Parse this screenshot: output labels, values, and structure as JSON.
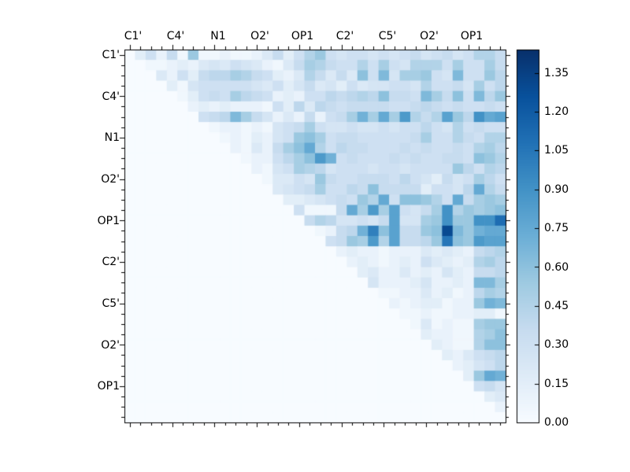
{
  "chart_data": {
    "type": "heatmap",
    "title": "",
    "matrix_size": 36,
    "cells_per_group": 4,
    "triangle": "upper",
    "colormap": "Blues",
    "vmin": 0.0,
    "vmax": 1.44,
    "grid": false,
    "x_tick_labels": [
      "C1'",
      "C4'",
      "N1",
      "O2'",
      "OP1",
      "C2'",
      "C5'",
      "O2'",
      "OP1"
    ],
    "y_tick_labels": [
      "C1'",
      "C4'",
      "N1",
      "O2'",
      "OP1",
      "C2'",
      "C5'",
      "O2'",
      "OP1"
    ],
    "colorbar_tick_labels": [
      "0.00",
      "0.15",
      "0.30",
      "0.45",
      "0.60",
      "0.75",
      "0.90",
      "1.05",
      "1.20",
      "1.35"
    ],
    "colorbar_tick_values": [
      0.0,
      0.15,
      0.3,
      0.45,
      0.6,
      0.75,
      0.9,
      1.05,
      1.2,
      1.35
    ],
    "colorbar_position": "right",
    "cmap_stops": [
      [
        0.0,
        "#f7fbff"
      ],
      [
        0.125,
        "#deebf7"
      ],
      [
        0.25,
        "#c6dbef"
      ],
      [
        0.375,
        "#9ecae1"
      ],
      [
        0.5,
        "#6baed6"
      ],
      [
        0.625,
        "#4292c6"
      ],
      [
        0.75,
        "#2171b5"
      ],
      [
        0.875,
        "#08519c"
      ],
      [
        1.0,
        "#08306b"
      ]
    ],
    "values": [
      [
        0,
        0.15,
        0.3,
        0.1,
        0.35,
        0.05,
        0.55,
        0.05,
        0.05,
        0.1,
        0.05,
        0.05,
        0.1,
        0.2,
        0.35,
        0.15,
        0.3,
        0.45,
        0.55,
        0.3,
        0.25,
        0.3,
        0.3,
        0.25,
        0.3,
        0.25,
        0.3,
        0.35,
        0.25,
        0.3,
        0.35,
        0.25,
        0.3,
        0.45,
        0.45,
        0.35
      ],
      [
        0,
        0,
        0.05,
        0.05,
        0.1,
        0.15,
        0.1,
        0.2,
        0.25,
        0.2,
        0.3,
        0.25,
        0.2,
        0.1,
        0.05,
        0.2,
        0.35,
        0.5,
        0.45,
        0.35,
        0.3,
        0.3,
        0.45,
        0.3,
        0.5,
        0.3,
        0.25,
        0.45,
        0.45,
        0.45,
        0.3,
        0.5,
        0.3,
        0.3,
        0.5,
        0.35
      ],
      [
        0,
        0,
        0,
        0.2,
        0.1,
        0.3,
        0.15,
        0.35,
        0.4,
        0.4,
        0.5,
        0.45,
        0.35,
        0.3,
        0.15,
        0.1,
        0.2,
        0.45,
        0.35,
        0.2,
        0.35,
        0.2,
        0.6,
        0.3,
        0.65,
        0.25,
        0.5,
        0.5,
        0.55,
        0.3,
        0.25,
        0.65,
        0.3,
        0.3,
        0.55,
        0.4
      ],
      [
        0,
        0,
        0,
        0,
        0.15,
        0.05,
        0.25,
        0.3,
        0.3,
        0.3,
        0.3,
        0.3,
        0.25,
        0.2,
        0.3,
        0.15,
        0.25,
        0.35,
        0.2,
        0.25,
        0.15,
        0.3,
        0.2,
        0.25,
        0.25,
        0.3,
        0.3,
        0.25,
        0.45,
        0.3,
        0.3,
        0.35,
        0.25,
        0.5,
        0.3,
        0.4
      ],
      [
        0,
        0,
        0,
        0,
        0,
        0.05,
        0.15,
        0.3,
        0.35,
        0.3,
        0.5,
        0.4,
        0.35,
        0.3,
        0.1,
        0.15,
        0.1,
        0.3,
        0.3,
        0.4,
        0.35,
        0.4,
        0.45,
        0.4,
        0.6,
        0.35,
        0.35,
        0.3,
        0.65,
        0.5,
        0.35,
        0.6,
        0.3,
        0.65,
        0.4,
        0.55
      ],
      [
        0,
        0,
        0,
        0,
        0,
        0,
        0.1,
        0.15,
        0.1,
        0.15,
        0.1,
        0.1,
        0.1,
        0.05,
        0.3,
        0.15,
        0.4,
        0.2,
        0.4,
        0.35,
        0.3,
        0.35,
        0.35,
        0.35,
        0.35,
        0.3,
        0.3,
        0.35,
        0.4,
        0.35,
        0.3,
        0.35,
        0.3,
        0.3,
        0.35,
        0.3
      ],
      [
        0,
        0,
        0,
        0,
        0,
        0,
        0,
        0.3,
        0.35,
        0.4,
        0.65,
        0.5,
        0.35,
        0.25,
        0.1,
        0.2,
        0.1,
        0.35,
        0.1,
        0.3,
        0.35,
        0.5,
        0.7,
        0.5,
        0.75,
        0.5,
        0.85,
        0.45,
        0.35,
        0.45,
        0.8,
        0.55,
        0.4,
        0.9,
        0.75,
        0.8
      ],
      [
        0,
        0,
        0,
        0,
        0,
        0,
        0,
        0,
        0.05,
        0.1,
        0.1,
        0.05,
        0.1,
        0.05,
        0.25,
        0.3,
        0.35,
        0.5,
        0.3,
        0.25,
        0.25,
        0.3,
        0.25,
        0.25,
        0.3,
        0.25,
        0.3,
        0.3,
        0.4,
        0.3,
        0.25,
        0.45,
        0.3,
        0.35,
        0.3,
        0.3
      ],
      [
        0,
        0,
        0,
        0,
        0,
        0,
        0,
        0,
        0,
        0.05,
        0.1,
        0.05,
        0.15,
        0.1,
        0.25,
        0.3,
        0.55,
        0.6,
        0.5,
        0.3,
        0.35,
        0.35,
        0.3,
        0.3,
        0.3,
        0.3,
        0.3,
        0.35,
        0.5,
        0.3,
        0.3,
        0.45,
        0.35,
        0.3,
        0.45,
        0.45
      ],
      [
        0,
        0,
        0,
        0,
        0,
        0,
        0,
        0,
        0,
        0,
        0.1,
        0.05,
        0.2,
        0.1,
        0.35,
        0.5,
        0.6,
        0.75,
        0.45,
        0.3,
        0.4,
        0.35,
        0.35,
        0.3,
        0.3,
        0.3,
        0.35,
        0.3,
        0.35,
        0.3,
        0.3,
        0.35,
        0.3,
        0.45,
        0.5,
        0.4
      ],
      [
        0,
        0,
        0,
        0,
        0,
        0,
        0,
        0,
        0,
        0,
        0,
        0.05,
        0.1,
        0.1,
        0.3,
        0.4,
        0.5,
        0.6,
        0.85,
        0.7,
        0.3,
        0.35,
        0.3,
        0.3,
        0.3,
        0.35,
        0.3,
        0.35,
        0.3,
        0.3,
        0.35,
        0.35,
        0.3,
        0.6,
        0.55,
        0.45
      ],
      [
        0,
        0,
        0,
        0,
        0,
        0,
        0,
        0,
        0,
        0,
        0,
        0,
        0.1,
        0.05,
        0.25,
        0.3,
        0.5,
        0.45,
        0.4,
        0.25,
        0.3,
        0.3,
        0.3,
        0.25,
        0.3,
        0.3,
        0.25,
        0.3,
        0.3,
        0.3,
        0.3,
        0.55,
        0.4,
        0.3,
        0.45,
        0.4
      ],
      [
        0,
        0,
        0,
        0,
        0,
        0,
        0,
        0,
        0,
        0,
        0,
        0,
        0,
        0.05,
        0.2,
        0.2,
        0.3,
        0.25,
        0.55,
        0.35,
        0.3,
        0.3,
        0.35,
        0.35,
        0.35,
        0.3,
        0.4,
        0.3,
        0.25,
        0.15,
        0.35,
        0.25,
        0.3,
        0.5,
        0.4,
        0.3
      ],
      [
        0,
        0,
        0,
        0,
        0,
        0,
        0,
        0,
        0,
        0,
        0,
        0,
        0,
        0,
        0.2,
        0.25,
        0.3,
        0.35,
        0.5,
        0.3,
        0.3,
        0.4,
        0.35,
        0.6,
        0.35,
        0.35,
        0.35,
        0.35,
        0.15,
        0.3,
        0.3,
        0.25,
        0.4,
        0.75,
        0.45,
        0.35
      ],
      [
        0,
        0,
        0,
        0,
        0,
        0,
        0,
        0,
        0,
        0,
        0,
        0,
        0,
        0,
        0,
        0.15,
        0.15,
        0.2,
        0.25,
        0.3,
        0.35,
        0.3,
        0.55,
        0.45,
        0.75,
        0.3,
        0.6,
        0.6,
        0.55,
        0.45,
        0.3,
        0.75,
        0.35,
        0.5,
        0.55,
        0.5
      ],
      [
        0,
        0,
        0,
        0,
        0,
        0,
        0,
        0,
        0,
        0,
        0,
        0,
        0,
        0,
        0,
        0,
        0.3,
        0.05,
        0.05,
        0.05,
        0.35,
        0.75,
        0.5,
        0.85,
        0.5,
        0.8,
        0.3,
        0.25,
        0.35,
        0.5,
        0.9,
        0.45,
        0.55,
        0.5,
        0.55,
        0.6
      ],
      [
        0,
        0,
        0,
        0,
        0,
        0,
        0,
        0,
        0,
        0,
        0,
        0,
        0,
        0,
        0,
        0,
        0,
        0.35,
        0.45,
        0.4,
        0.25,
        0.25,
        0.3,
        0.25,
        0.35,
        0.8,
        0.25,
        0.25,
        0.5,
        0.55,
        0.9,
        0.55,
        0.55,
        0.9,
        0.9,
        1.1
      ],
      [
        0,
        0,
        0,
        0,
        0,
        0,
        0,
        0,
        0,
        0,
        0,
        0,
        0,
        0,
        0,
        0,
        0,
        0,
        0.05,
        0.1,
        0.35,
        0.4,
        0.7,
        1.0,
        0.6,
        0.8,
        0.35,
        0.35,
        0.55,
        0.6,
        1.3,
        0.65,
        0.55,
        0.7,
        0.75,
        0.75
      ],
      [
        0,
        0,
        0,
        0,
        0,
        0,
        0,
        0,
        0,
        0,
        0,
        0,
        0,
        0,
        0,
        0,
        0,
        0,
        0,
        0.3,
        0.35,
        0.55,
        0.5,
        0.85,
        0.45,
        0.8,
        0.35,
        0.35,
        0.4,
        0.55,
        1.05,
        0.6,
        0.55,
        0.85,
        0.8,
        0.8
      ],
      [
        0,
        0,
        0,
        0,
        0,
        0,
        0,
        0,
        0,
        0,
        0,
        0,
        0,
        0,
        0,
        0,
        0,
        0,
        0,
        0,
        0.1,
        0.15,
        0.1,
        0.1,
        0.05,
        0.1,
        0.1,
        0.1,
        0.2,
        0.15,
        0.2,
        0.15,
        0.1,
        0.35,
        0.4,
        0.45
      ],
      [
        0,
        0,
        0,
        0,
        0,
        0,
        0,
        0,
        0,
        0,
        0,
        0,
        0,
        0,
        0,
        0,
        0,
        0,
        0,
        0,
        0,
        0.1,
        0.15,
        0.1,
        0.05,
        0.1,
        0.15,
        0.1,
        0.3,
        0.2,
        0.15,
        0.1,
        0.15,
        0.45,
        0.5,
        0.4
      ],
      [
        0,
        0,
        0,
        0,
        0,
        0,
        0,
        0,
        0,
        0,
        0,
        0,
        0,
        0,
        0,
        0,
        0,
        0,
        0,
        0,
        0,
        0,
        0.15,
        0.2,
        0.1,
        0.1,
        0.2,
        0.1,
        0.15,
        0.1,
        0.25,
        0.15,
        0.1,
        0.35,
        0.35,
        0.4
      ],
      [
        0,
        0,
        0,
        0,
        0,
        0,
        0,
        0,
        0,
        0,
        0,
        0,
        0,
        0,
        0,
        0,
        0,
        0,
        0,
        0,
        0,
        0,
        0,
        0.25,
        0.1,
        0.1,
        0.1,
        0.15,
        0.25,
        0.1,
        0.1,
        0.15,
        0.1,
        0.65,
        0.65,
        0.5
      ],
      [
        0,
        0,
        0,
        0,
        0,
        0,
        0,
        0,
        0,
        0,
        0,
        0,
        0,
        0,
        0,
        0,
        0,
        0,
        0,
        0,
        0,
        0,
        0,
        0,
        0.05,
        0.05,
        0.1,
        0.1,
        0.2,
        0.1,
        0.15,
        0.05,
        0.1,
        0.4,
        0.5,
        0.45
      ],
      [
        0,
        0,
        0,
        0,
        0,
        0,
        0,
        0,
        0,
        0,
        0,
        0,
        0,
        0,
        0,
        0,
        0,
        0,
        0,
        0,
        0,
        0,
        0,
        0,
        0,
        0.1,
        0.05,
        0.1,
        0.15,
        0.15,
        0.05,
        0.1,
        0.1,
        0.55,
        0.7,
        0.65
      ],
      [
        0,
        0,
        0,
        0,
        0,
        0,
        0,
        0,
        0,
        0,
        0,
        0,
        0,
        0,
        0,
        0,
        0,
        0,
        0,
        0,
        0,
        0,
        0,
        0,
        0,
        0,
        0.05,
        0.05,
        0.1,
        0.05,
        0.05,
        0.1,
        0.1,
        0.15,
        0.15,
        0.05
      ],
      [
        0,
        0,
        0,
        0,
        0,
        0,
        0,
        0,
        0,
        0,
        0,
        0,
        0,
        0,
        0,
        0,
        0,
        0,
        0,
        0,
        0,
        0,
        0,
        0,
        0,
        0,
        0,
        0.05,
        0.2,
        0.05,
        0.1,
        0.05,
        0.05,
        0.5,
        0.55,
        0.55
      ],
      [
        0,
        0,
        0,
        0,
        0,
        0,
        0,
        0,
        0,
        0,
        0,
        0,
        0,
        0,
        0,
        0,
        0,
        0,
        0,
        0,
        0,
        0,
        0,
        0,
        0,
        0,
        0,
        0,
        0.15,
        0.1,
        0.1,
        0.05,
        0.05,
        0.45,
        0.5,
        0.6
      ],
      [
        0,
        0,
        0,
        0,
        0,
        0,
        0,
        0,
        0,
        0,
        0,
        0,
        0,
        0,
        0,
        0,
        0,
        0,
        0,
        0,
        0,
        0,
        0,
        0,
        0,
        0,
        0,
        0,
        0,
        0.15,
        0.1,
        0.05,
        0.05,
        0.45,
        0.6,
        0.6
      ],
      [
        0,
        0,
        0,
        0,
        0,
        0,
        0,
        0,
        0,
        0,
        0,
        0,
        0,
        0,
        0,
        0,
        0,
        0,
        0,
        0,
        0,
        0,
        0,
        0,
        0,
        0,
        0,
        0,
        0,
        0,
        0.15,
        0.1,
        0.2,
        0.3,
        0.35,
        0.4
      ],
      [
        0,
        0,
        0,
        0,
        0,
        0,
        0,
        0,
        0,
        0,
        0,
        0,
        0,
        0,
        0,
        0,
        0,
        0,
        0,
        0,
        0,
        0,
        0,
        0,
        0,
        0,
        0,
        0,
        0,
        0,
        0,
        0.1,
        0.15,
        0.25,
        0.3,
        0.4
      ],
      [
        0,
        0,
        0,
        0,
        0,
        0,
        0,
        0,
        0,
        0,
        0,
        0,
        0,
        0,
        0,
        0,
        0,
        0,
        0,
        0,
        0,
        0,
        0,
        0,
        0,
        0,
        0,
        0,
        0,
        0,
        0,
        0,
        0.15,
        0.55,
        0.75,
        0.7
      ],
      [
        0,
        0,
        0,
        0,
        0,
        0,
        0,
        0,
        0,
        0,
        0,
        0,
        0,
        0,
        0,
        0,
        0,
        0,
        0,
        0,
        0,
        0,
        0,
        0,
        0,
        0,
        0,
        0,
        0,
        0,
        0,
        0,
        0,
        0.3,
        0.35,
        0.25
      ],
      [
        0,
        0,
        0,
        0,
        0,
        0,
        0,
        0,
        0,
        0,
        0,
        0,
        0,
        0,
        0,
        0,
        0,
        0,
        0,
        0,
        0,
        0,
        0,
        0,
        0,
        0,
        0,
        0,
        0,
        0,
        0,
        0,
        0,
        0,
        0.15,
        0.2
      ],
      [
        0,
        0,
        0,
        0,
        0,
        0,
        0,
        0,
        0,
        0,
        0,
        0,
        0,
        0,
        0,
        0,
        0,
        0,
        0,
        0,
        0,
        0,
        0,
        0,
        0,
        0,
        0,
        0,
        0,
        0,
        0,
        0,
        0,
        0,
        0,
        0.1
      ],
      [
        0,
        0,
        0,
        0,
        0,
        0,
        0,
        0,
        0,
        0,
        0,
        0,
        0,
        0,
        0,
        0,
        0,
        0,
        0,
        0,
        0,
        0,
        0,
        0,
        0,
        0,
        0,
        0,
        0,
        0,
        0,
        0,
        0,
        0,
        0,
        0
      ]
    ]
  },
  "colors": {
    "background": "#ffffff",
    "axis_line": "#000000",
    "text": "#000000"
  }
}
